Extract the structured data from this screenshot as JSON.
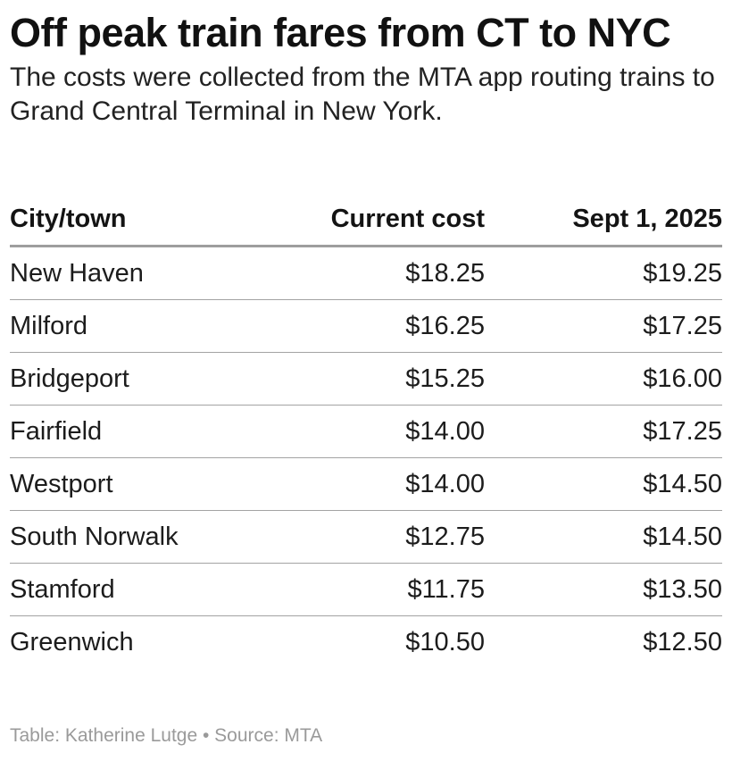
{
  "chart_data": {
    "type": "table",
    "title": "Off peak train fares from CT to NYC",
    "subtitle": "The costs were collected from the MTA app routing trains to Grand Central Terminal in New York.",
    "columns": [
      "City/town",
      "Current cost",
      "Sept 1, 2025"
    ],
    "rows": [
      [
        "New Haven",
        "$18.25",
        "$19.25"
      ],
      [
        "Milford",
        "$16.25",
        "$17.25"
      ],
      [
        "Bridgeport",
        "$15.25",
        "$16.00"
      ],
      [
        "Fairfield",
        "$14.00",
        "$17.25"
      ],
      [
        "Westport",
        "$14.00",
        "$14.50"
      ],
      [
        "South Norwalk",
        "$12.75",
        "$14.50"
      ],
      [
        "Stamford",
        "$11.75",
        "$13.50"
      ],
      [
        "Greenwich",
        "$10.50",
        "$12.50"
      ]
    ],
    "footer": "Table: Katherine Lutge • Source: MTA"
  }
}
